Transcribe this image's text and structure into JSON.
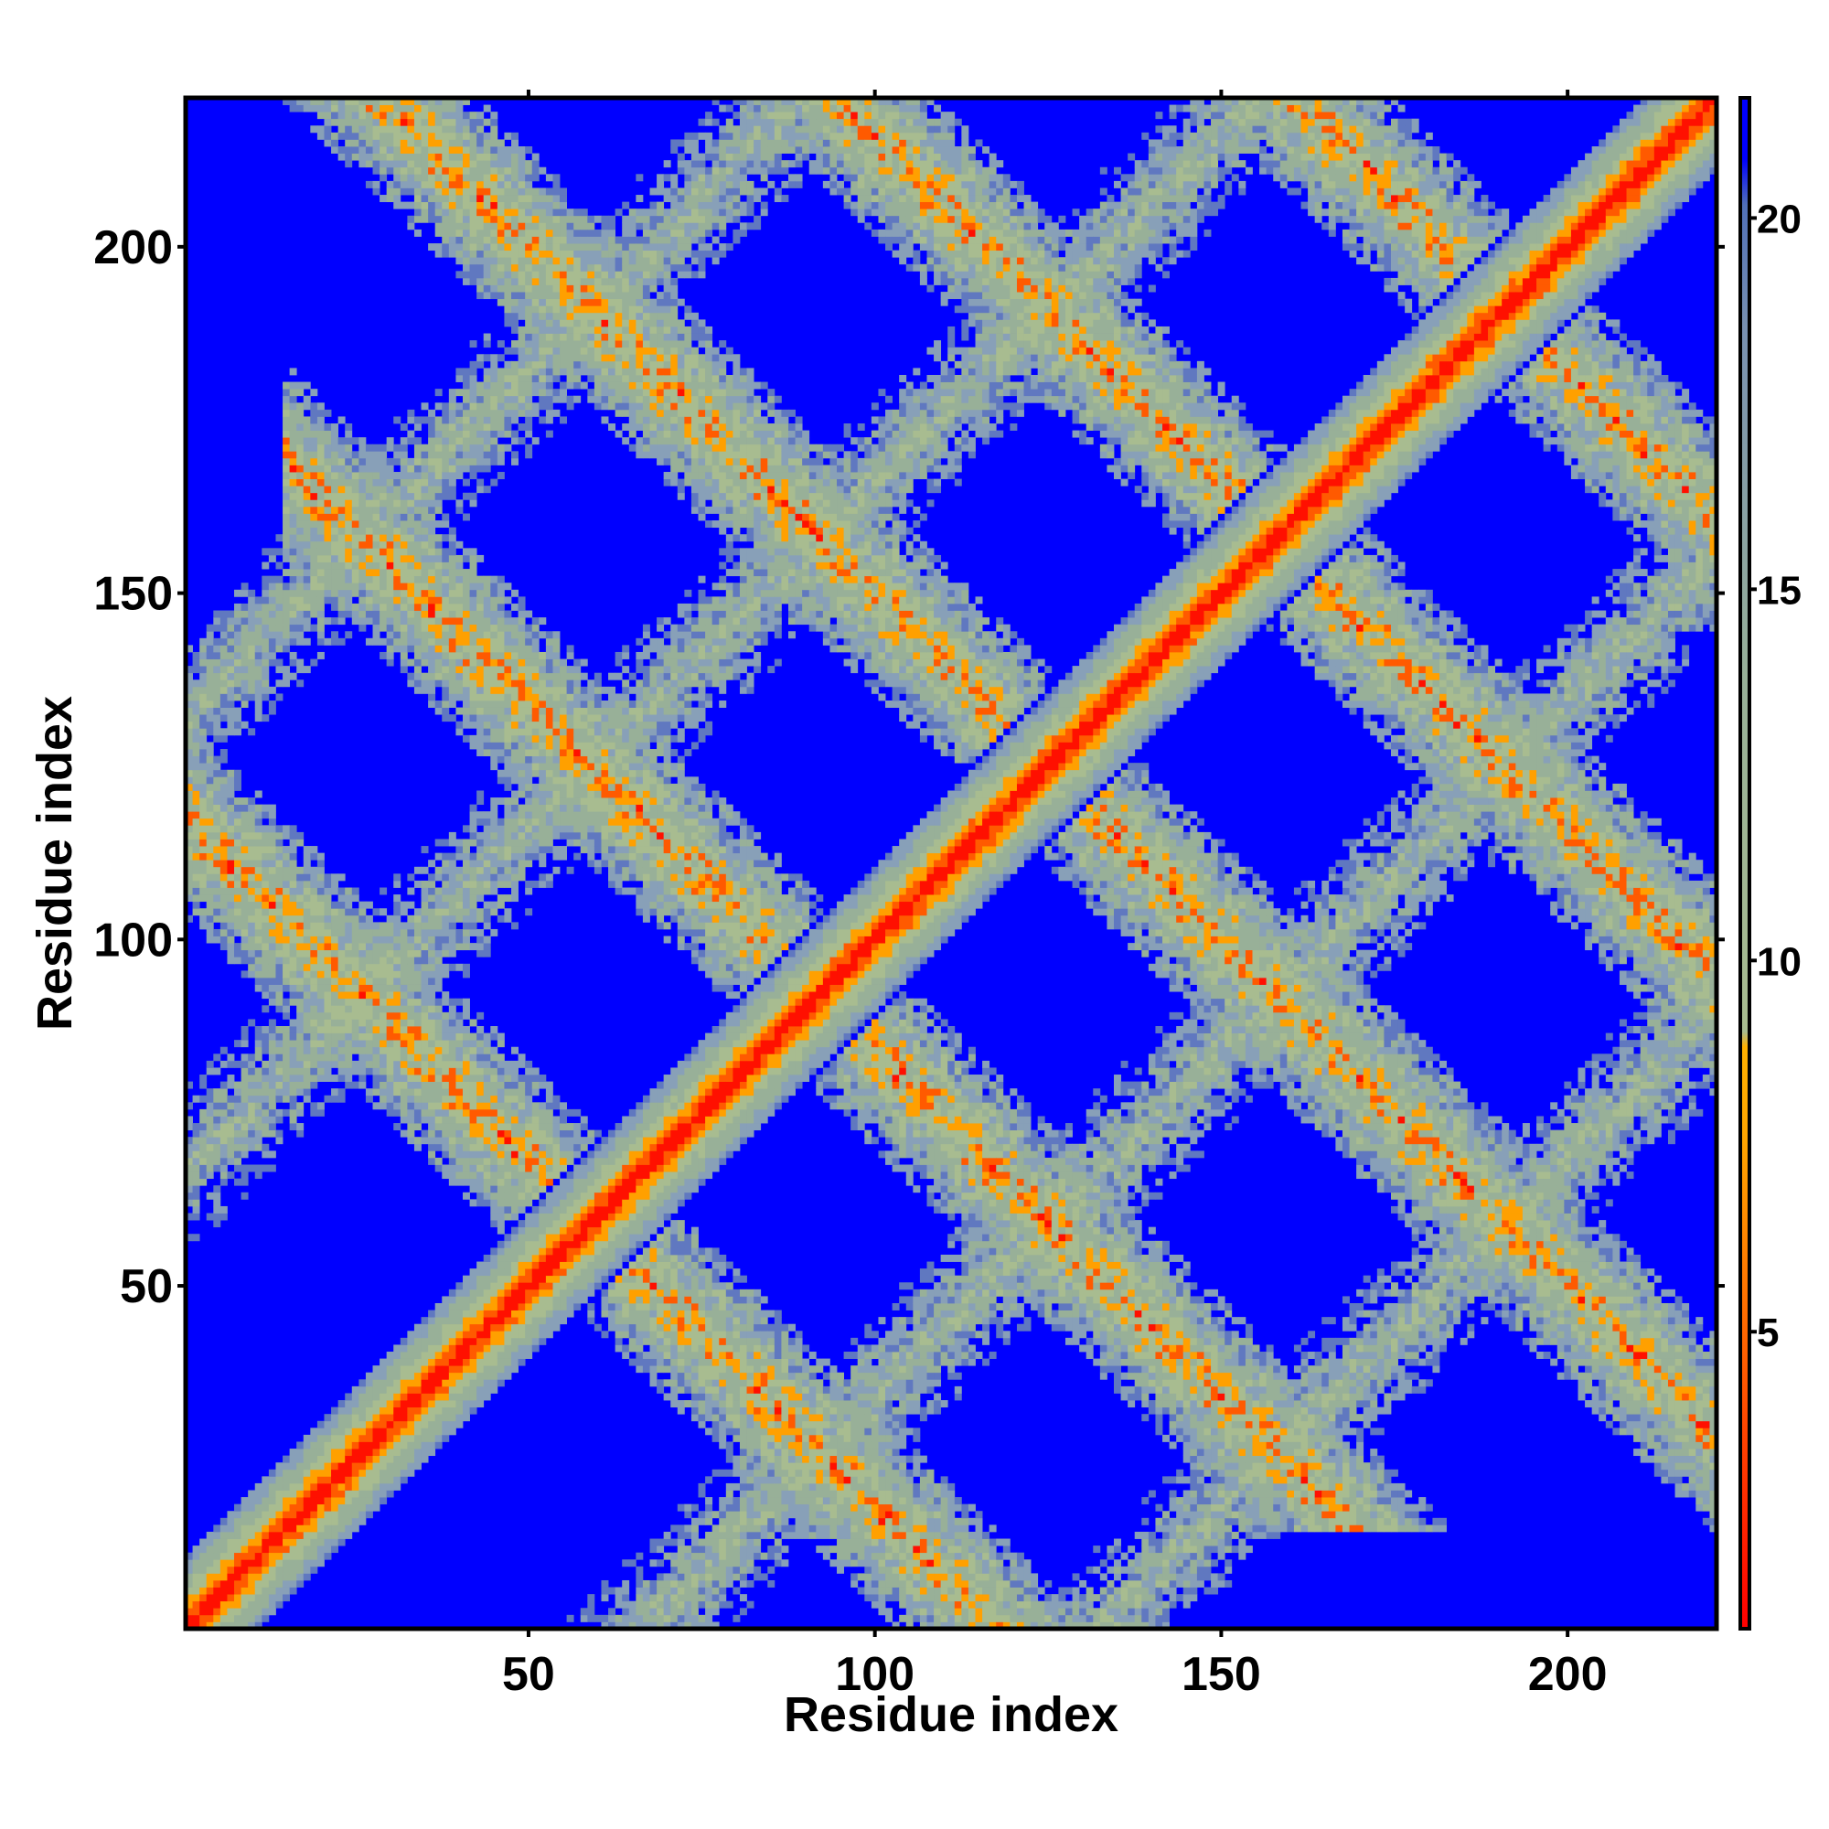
{
  "chart_data": {
    "type": "heatmap",
    "title": "",
    "xlabel": "Residue index",
    "ylabel": "Residue index",
    "xlim": [
      1,
      221
    ],
    "ylim": [
      1,
      221
    ],
    "x_ticks": [
      50,
      100,
      150,
      200
    ],
    "y_ticks": [
      50,
      100,
      150,
      200
    ],
    "colorbar": {
      "range": [
        1,
        21
      ],
      "ticks": [
        5,
        10,
        15,
        20
      ],
      "colors": {
        "low": "#ff0000",
        "mid_low": "#ffa500",
        "mid": "#a0b890",
        "mid_high": "#8aa8c0",
        "high": "#0000ff"
      },
      "placement": "right"
    },
    "structure": {
      "description_free": true,
      "main_diagonal": true,
      "helix_period": 66,
      "offset_bands": [
        {
          "center_sum": 118,
          "from": 20,
          "to": 100
        },
        {
          "center_sum": 184,
          "from": 35,
          "to": 150
        },
        {
          "center_sum": 250,
          "from": 30,
          "to": 220
        },
        {
          "center_sum": 316,
          "from": 95,
          "to": 215
        },
        {
          "center_sum": 382,
          "from": 165,
          "to": 215
        }
      ]
    }
  }
}
